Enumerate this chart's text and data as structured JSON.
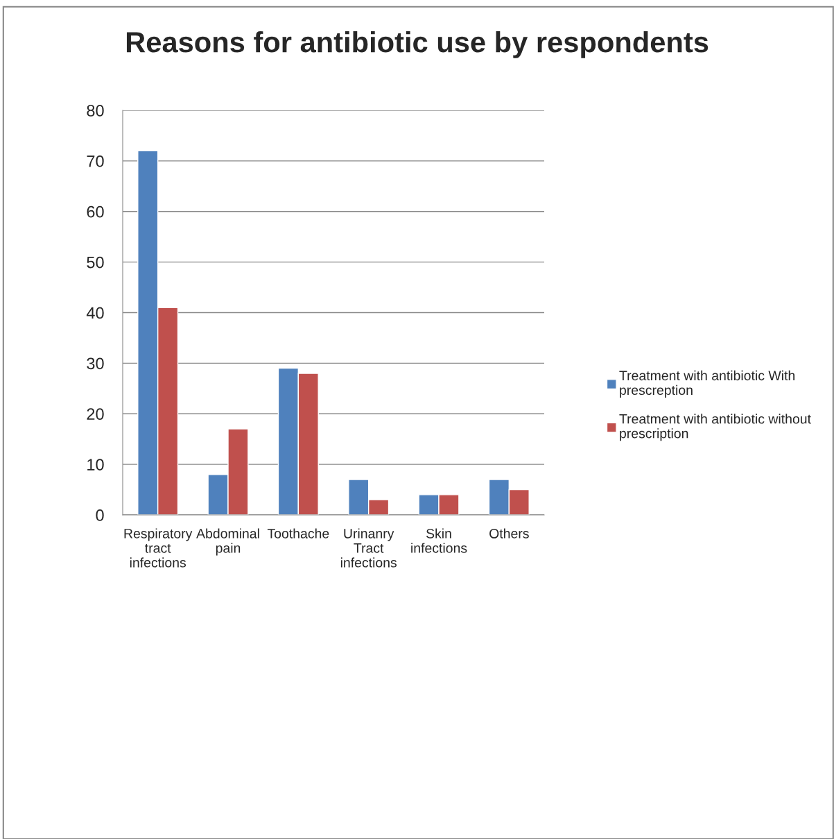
{
  "chart_data": {
    "type": "bar",
    "title": "Reasons for antibiotic use by respondents",
    "categories": [
      "Respiratory tract infections",
      "Abdominal pain",
      "Toothache",
      "Urinanry Tract infections",
      "Skin infections",
      "Others"
    ],
    "series": [
      {
        "name": "Treatment with antibiotic With prescreption",
        "color": "#4f81bd",
        "values": [
          72,
          8,
          29,
          7,
          4,
          7
        ]
      },
      {
        "name": "Treatment with antibiotic without prescription",
        "color": "#c0504d",
        "values": [
          41,
          17,
          28,
          3,
          4,
          5
        ]
      }
    ],
    "ylim": [
      0,
      80
    ],
    "yticks": [
      0,
      10,
      20,
      30,
      40,
      50,
      60,
      70,
      80
    ],
    "grid": "y",
    "legend": "right"
  }
}
